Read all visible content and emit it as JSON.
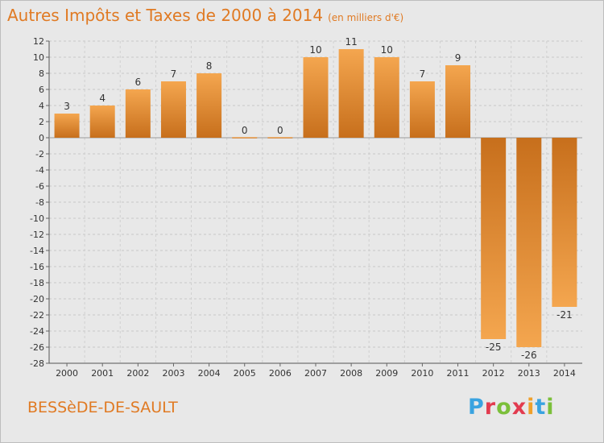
{
  "title": "Autres Impôts et Taxes de 2000 à 2014",
  "subtitle": "(en milliers d'€)",
  "commune": "BESSèDE-DE-SAULT",
  "logo": {
    "p": "P",
    "r": "r",
    "o": "o",
    "x": "x",
    "i1": "i",
    "t": "t",
    "i2": "i"
  },
  "colors": {
    "title": "#e07a23",
    "bar_light": "#f4a64f",
    "bar_dark": "#c76f1c",
    "background": "#e8e8e8"
  },
  "chart_data": {
    "type": "bar",
    "categories": [
      "2000",
      "2001",
      "2002",
      "2003",
      "2004",
      "2005",
      "2006",
      "2007",
      "2008",
      "2009",
      "2010",
      "2011",
      "2012",
      "2013",
      "2014"
    ],
    "values": [
      3,
      4,
      6,
      7,
      8,
      0,
      0,
      10,
      11,
      10,
      7,
      9,
      -25,
      -26,
      -21
    ],
    "value_labels": [
      "3",
      "4",
      "6",
      "7",
      "8",
      "0",
      "0",
      "10",
      "11",
      "10",
      "7",
      "9",
      "-25",
      "-26",
      "-21"
    ],
    "y_ticks": [
      "12",
      "10",
      "8",
      "6",
      "4",
      "2",
      "0",
      "-2",
      "-4",
      "-6",
      "-8",
      "-10",
      "-12",
      "-14",
      "-16",
      "-18",
      "-20",
      "-22",
      "-24",
      "-26",
      "-28"
    ],
    "ylim": [
      -28,
      12
    ],
    "grid": true
  }
}
